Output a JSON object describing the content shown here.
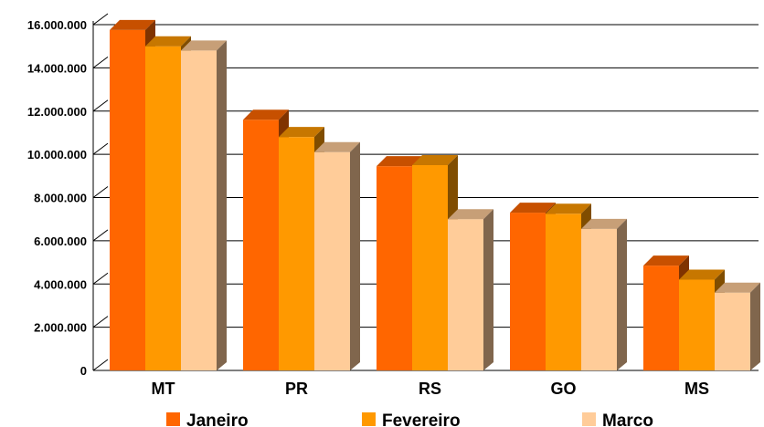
{
  "chart_data": {
    "type": "bar",
    "title": "",
    "xlabel": "",
    "ylabel": "",
    "categories": [
      "MT",
      "PR",
      "RS",
      "GO",
      "MS"
    ],
    "series": [
      {
        "name": "Janeiro",
        "color": "#ff6600",
        "values": [
          15750000,
          11600000,
          9450000,
          7300000,
          4850000
        ]
      },
      {
        "name": "Fevereiro",
        "color": "#ff9900",
        "values": [
          15000000,
          10800000,
          9500000,
          7250000,
          4200000
        ]
      },
      {
        "name": "Marco",
        "color": "#ffcc99",
        "values": [
          14800000,
          10100000,
          7000000,
          6550000,
          3600000
        ]
      }
    ],
    "ylim": [
      0,
      16000000
    ],
    "yticks": [
      0,
      2000000,
      4000000,
      6000000,
      8000000,
      10000000,
      12000000,
      14000000,
      16000000
    ],
    "ytick_labels": [
      "0",
      "2.000.000",
      "4.000.000",
      "6.000.000",
      "8.000.000",
      "10.000.000",
      "12.000.000",
      "14.000.000",
      "16.000.000"
    ],
    "grid": true,
    "legend_position": "bottom",
    "style": "3d-bar"
  }
}
